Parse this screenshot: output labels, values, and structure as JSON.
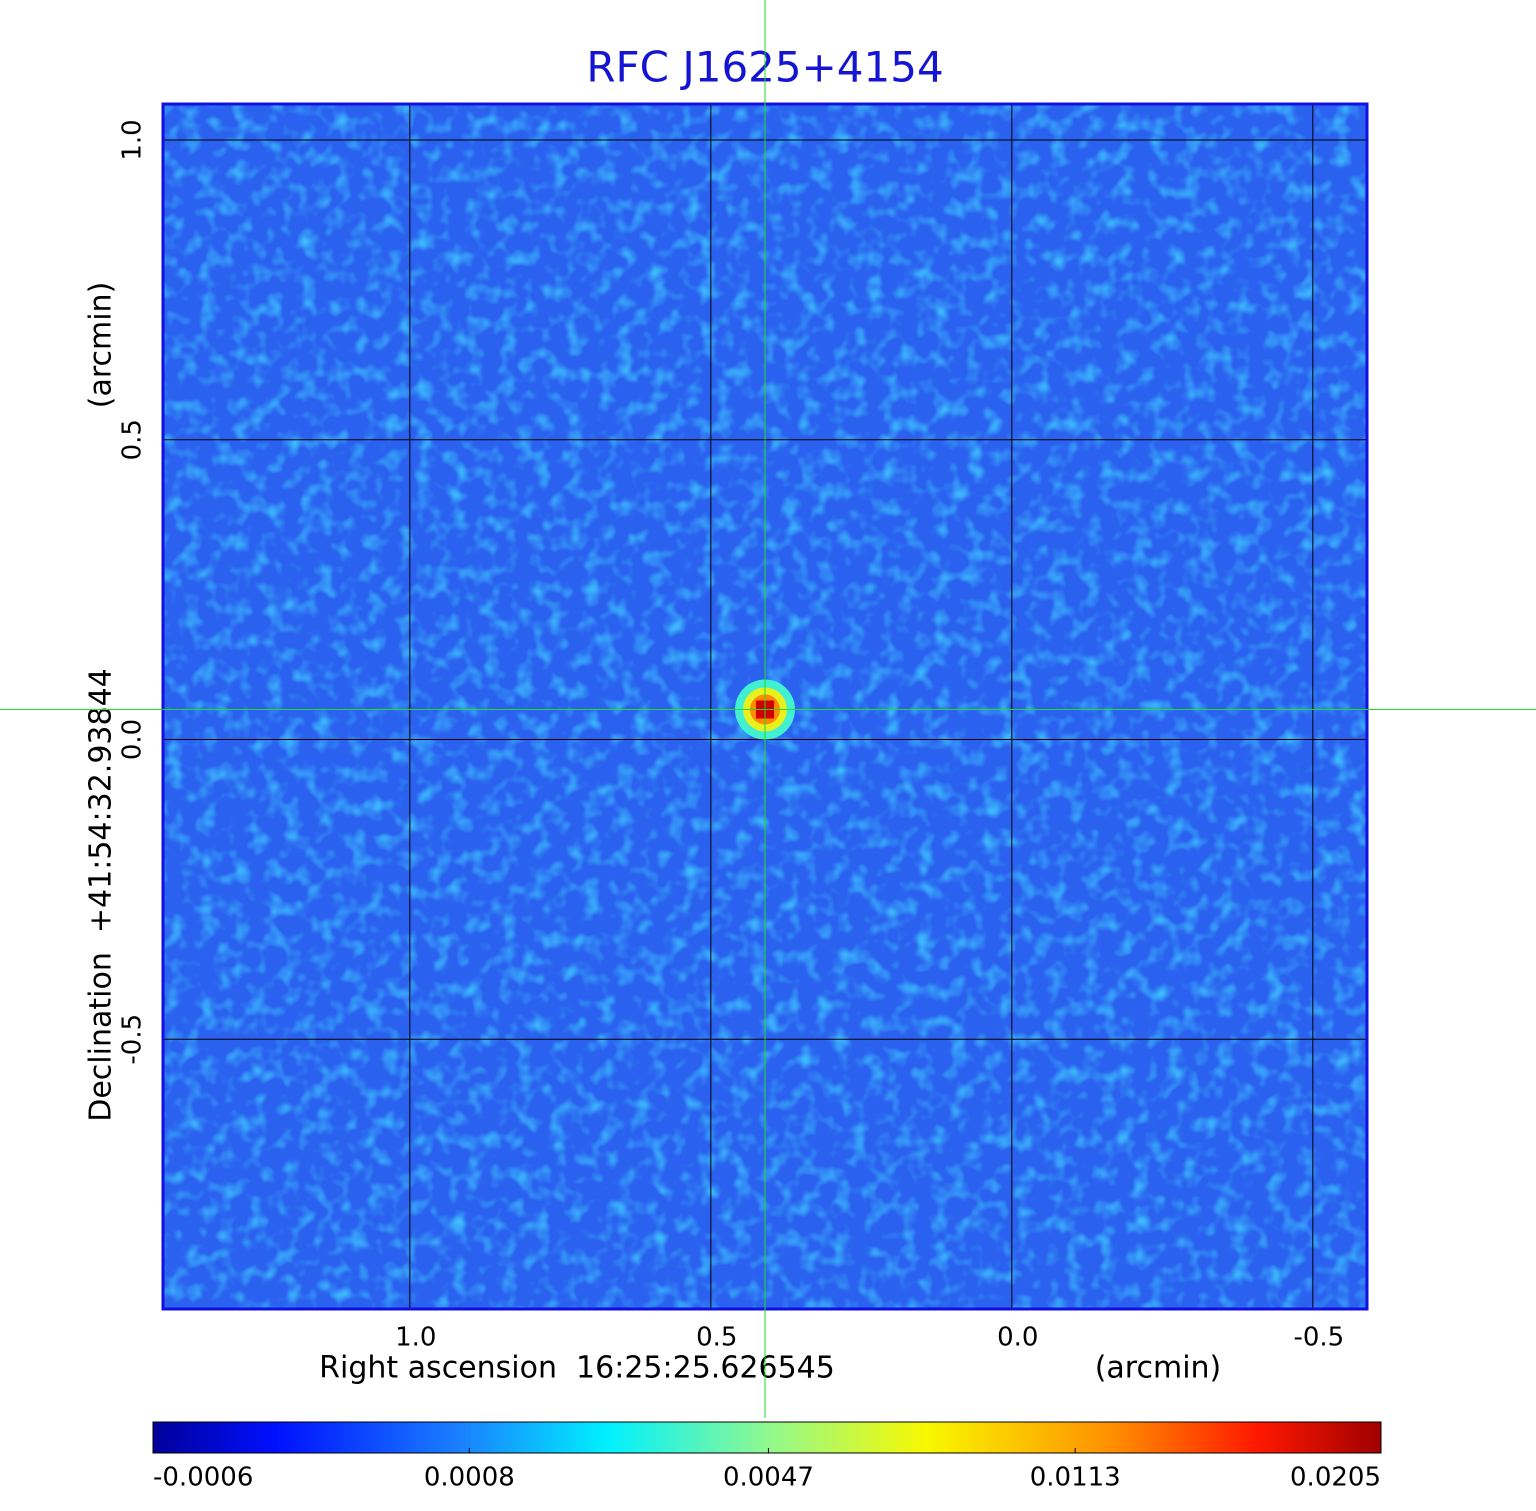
{
  "chart_data": {
    "type": "image",
    "title": "RFC J1625+4154",
    "x_label": "Right ascension  16:25:25.626545",
    "x_unit": "(arcmin)",
    "y_label": "Declination  +41:54:32.93844",
    "y_unit": "(arcmin)",
    "xlim": [
      1.41,
      -0.59
    ],
    "ylim": [
      -0.95,
      1.06
    ],
    "xticks": [
      {
        "value": 1,
        "label": "1.0"
      },
      0.5,
      {
        "value": 0,
        "label": "0.0"
      },
      -0.5
    ],
    "yticks": [
      {
        "value": 1,
        "label": "1.0"
      },
      0.5,
      {
        "value": 0,
        "label": "0.0"
      },
      -0.5
    ],
    "grid": true,
    "crosshair": {
      "x": 0.41,
      "y": 0.05
    },
    "peak": {
      "x": 0.41,
      "y": 0.05,
      "value": 0.0205
    },
    "colorbar_lim": [
      -0.0006,
      0.0205
    ],
    "colorbar_scale": "sqrt",
    "colorbar_ticks": [
      -0.0006,
      0.0008,
      0.0047,
      0.0113,
      0.0205
    ]
  }
}
